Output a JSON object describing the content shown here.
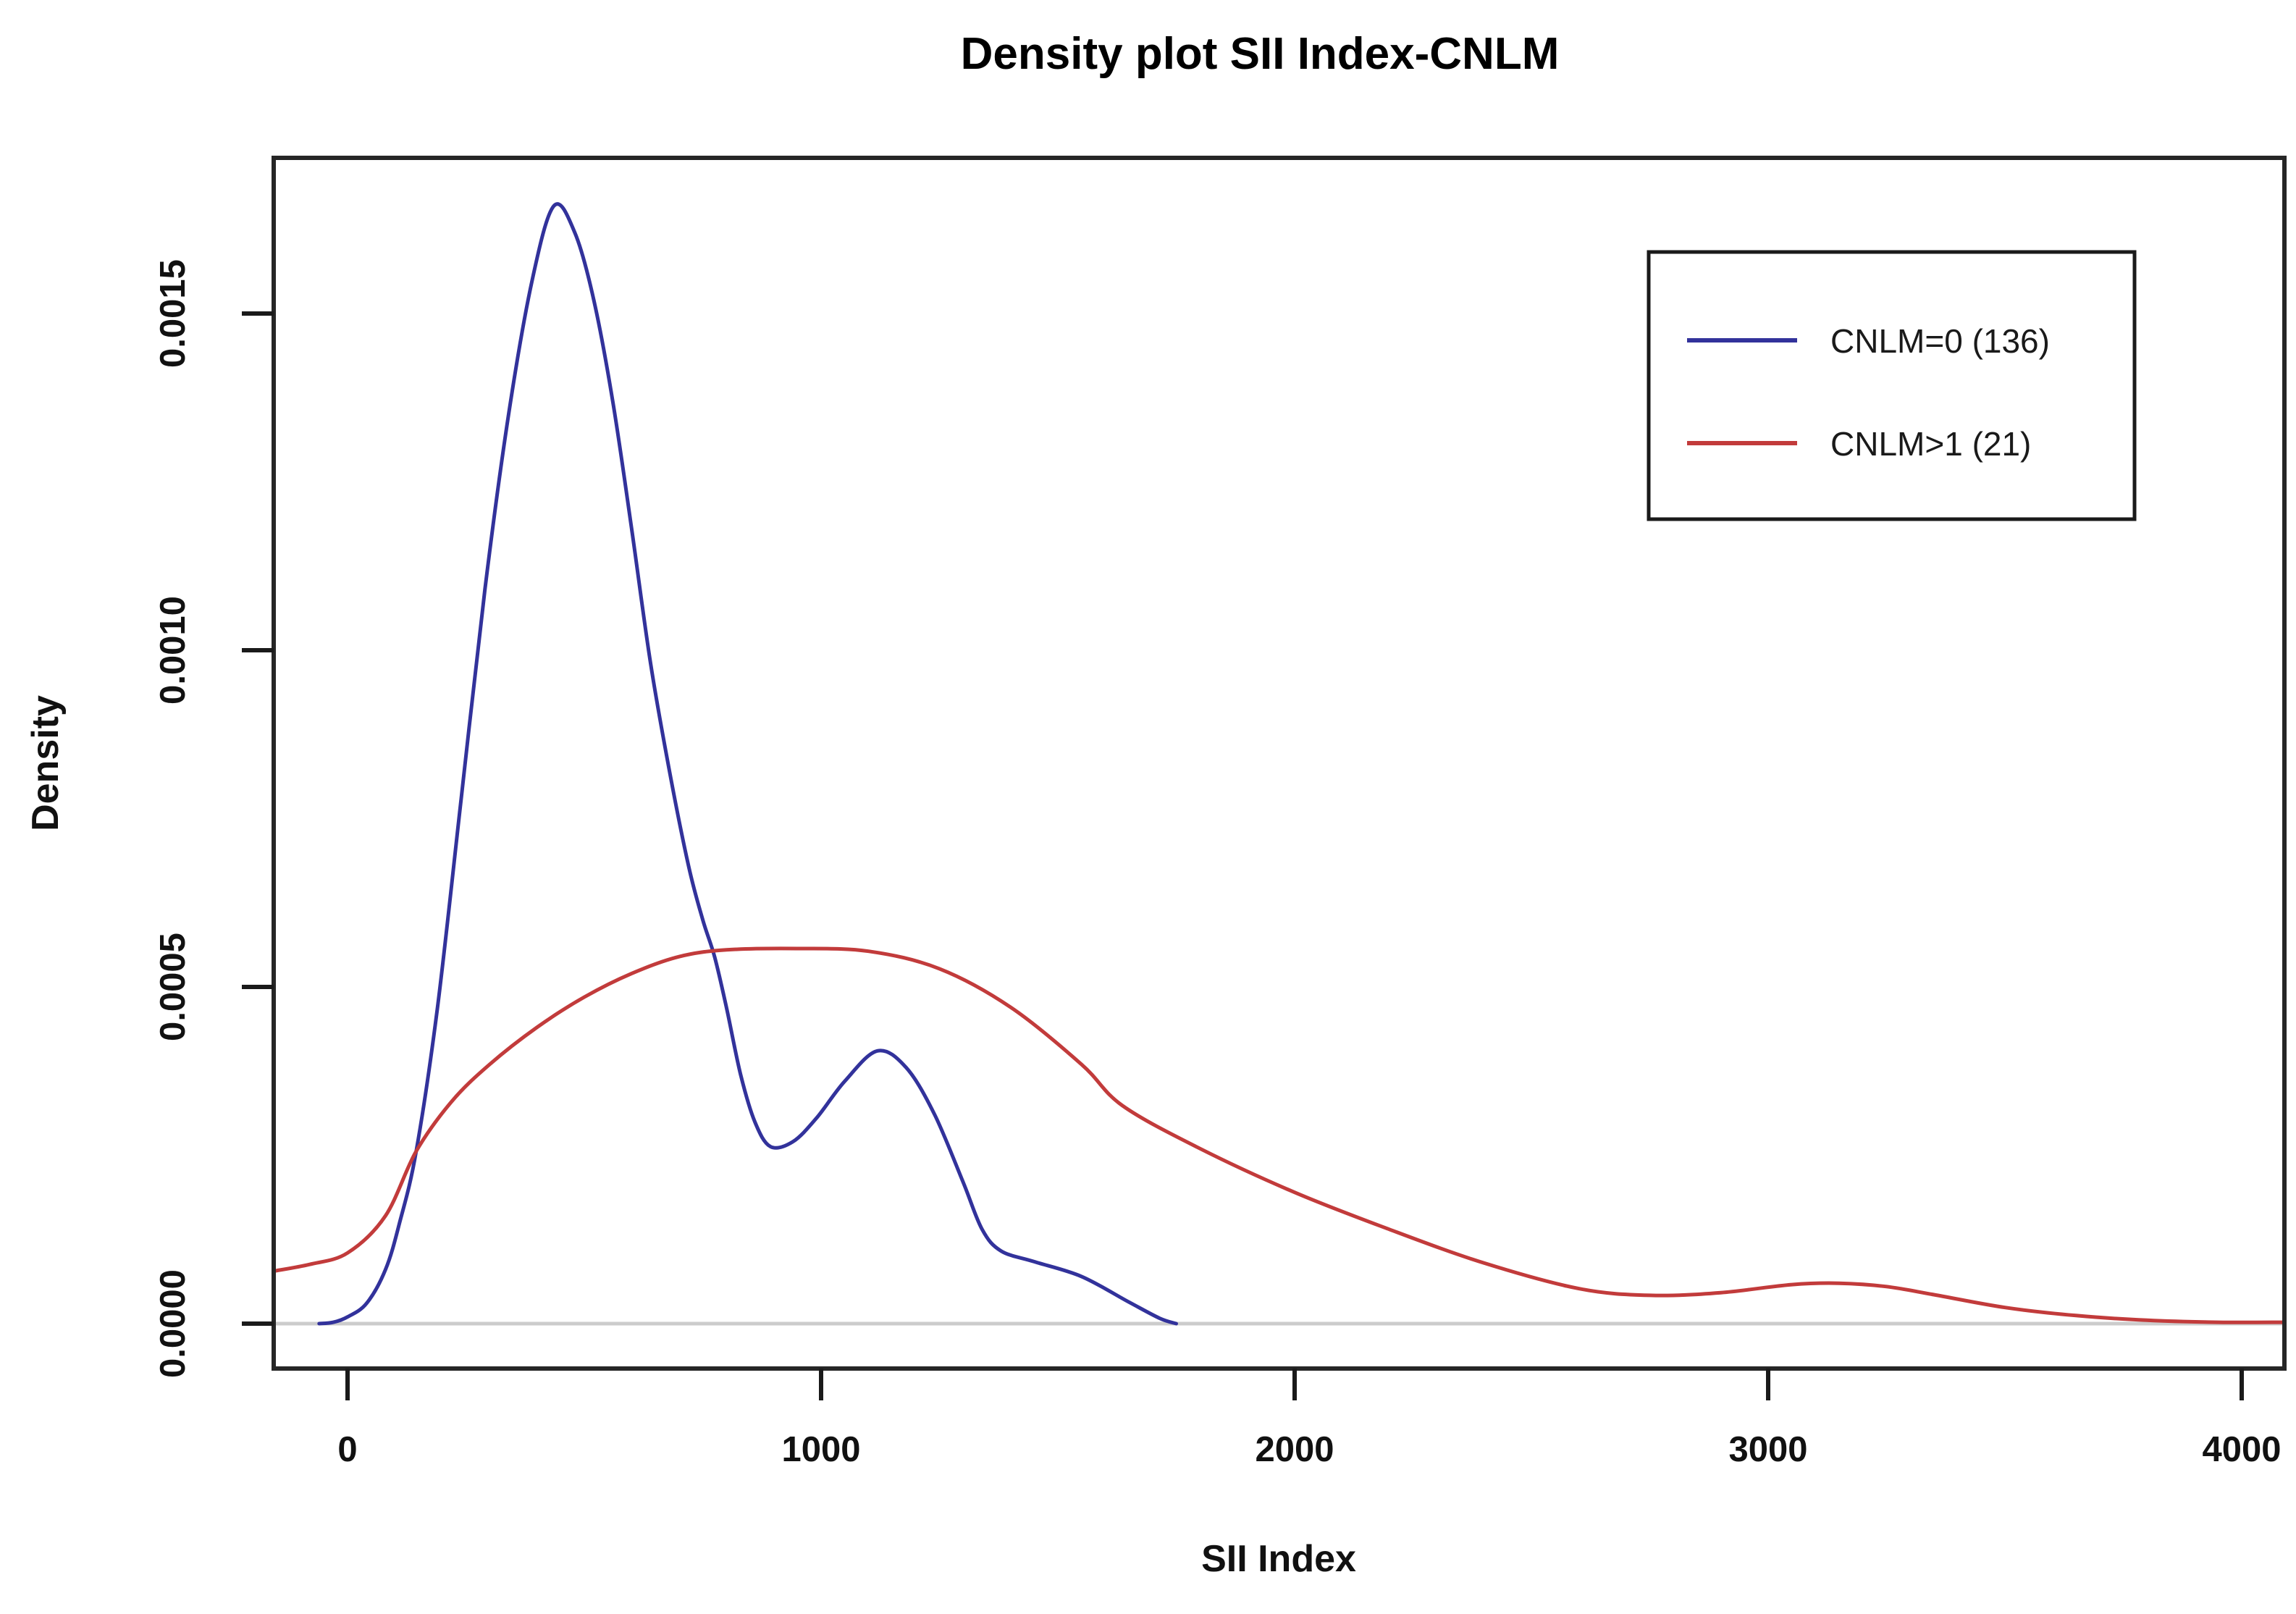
{
  "title": "Density plot SII Index-CNLM",
  "chart_data": {
    "type": "line",
    "title": "Density plot SII Index-CNLM",
    "xlabel": "SII Index",
    "ylabel": "Density",
    "x_ticks": [
      0,
      1000,
      2000,
      3000,
      4000
    ],
    "y_ticks": [
      0.0,
      0.0005,
      0.001,
      0.0015
    ],
    "y_tick_labels": [
      "0.0000",
      "0.0005",
      "0.0010",
      "0.0015"
    ],
    "xlim": [
      -160,
      4090
    ],
    "ylim": [
      0,
      0.00173
    ],
    "grid": false,
    "legend_position": "top-right",
    "axis_color": "#1a1a1a",
    "baseline_color": "#cccccc",
    "series": [
      {
        "name": "CNLM=0 (136)",
        "color": "#32329b",
        "points": [
          [
            -60,
            0
          ],
          [
            -30,
            2e-06
          ],
          [
            0,
            1e-05
          ],
          [
            40,
            3e-05
          ],
          [
            80,
            8e-05
          ],
          [
            110,
            0.00015
          ],
          [
            145,
            0.000256
          ],
          [
            190,
            0.00047
          ],
          [
            240,
            0.00078
          ],
          [
            290,
            0.00109
          ],
          [
            340,
            0.00135
          ],
          [
            390,
            0.00155
          ],
          [
            436,
            0.00166
          ],
          [
            480,
            0.00162
          ],
          [
            520,
            0.00152
          ],
          [
            560,
            0.00137
          ],
          [
            600,
            0.00118
          ],
          [
            640,
            0.00098
          ],
          [
            680,
            0.00082
          ],
          [
            720,
            0.00068
          ],
          [
            750,
            0.0006
          ],
          [
            775,
            0.000545
          ],
          [
            800,
            0.00047
          ],
          [
            830,
            0.00037
          ],
          [
            860,
            0.0003
          ],
          [
            893,
            0.000263
          ],
          [
            940,
            0.00027
          ],
          [
            990,
            0.000305
          ],
          [
            1050,
            0.00036
          ],
          [
            1119,
            0.000405
          ],
          [
            1180,
            0.00038
          ],
          [
            1240,
            0.00031
          ],
          [
            1300,
            0.00021
          ],
          [
            1340,
            0.00014
          ],
          [
            1380,
            0.000108
          ],
          [
            1450,
            9.2e-05
          ],
          [
            1550,
            7e-05
          ],
          [
            1650,
            3.2e-05
          ],
          [
            1715,
            8e-06
          ],
          [
            1750,
            0
          ]
        ]
      },
      {
        "name": "CNLM>1 (21)",
        "color": "#c23b3b",
        "points": [
          [
            -156,
            7.8e-05
          ],
          [
            -80,
            8.8e-05
          ],
          [
            0,
            0.000105
          ],
          [
            80,
            0.00016
          ],
          [
            145,
            0.000256
          ],
          [
            220,
            0.00033
          ],
          [
            300,
            0.000385
          ],
          [
            400,
            0.00044
          ],
          [
            500,
            0.000485
          ],
          [
            600,
            0.00052
          ],
          [
            700,
            0.000545
          ],
          [
            800,
            0.000555
          ],
          [
            950,
            0.000557
          ],
          [
            1100,
            0.000553
          ],
          [
            1250,
            0.000527
          ],
          [
            1400,
            0.00047
          ],
          [
            1550,
            0.000385
          ],
          [
            1636,
            0.000324
          ],
          [
            1800,
            0.00026
          ],
          [
            2000,
            0.000195
          ],
          [
            2200,
            0.00014
          ],
          [
            2400,
            9e-05
          ],
          [
            2600,
            5.2e-05
          ],
          [
            2750,
            4.2e-05
          ],
          [
            2900,
            4.6e-05
          ],
          [
            3050,
            5.8e-05
          ],
          [
            3150,
            6e-05
          ],
          [
            3250,
            5.5e-05
          ],
          [
            3350,
            4.3e-05
          ],
          [
            3500,
            2.4e-05
          ],
          [
            3650,
            1.2e-05
          ],
          [
            3800,
            5e-06
          ],
          [
            3950,
            2e-06
          ],
          [
            4090,
            2e-06
          ]
        ]
      }
    ]
  }
}
